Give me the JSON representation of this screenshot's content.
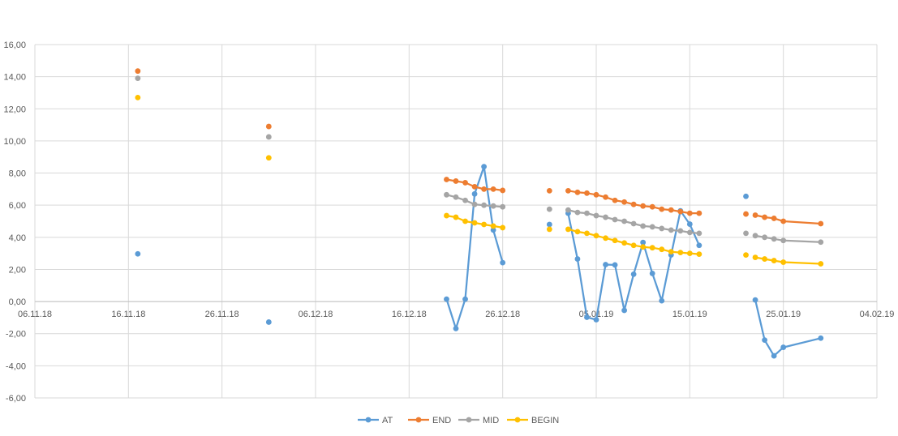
{
  "chart_data": {
    "type": "line",
    "title": "",
    "xlabel": "",
    "ylabel": "",
    "ylim": [
      -6,
      16
    ],
    "xlim": [
      "2018-11-06",
      "2019-02-04"
    ],
    "y_ticks": [
      -6,
      -4,
      -2,
      0,
      2,
      4,
      6,
      8,
      10,
      12,
      14,
      16
    ],
    "y_tick_labels": [
      "-6,00",
      "-4,00",
      "-2,00",
      "0,00",
      "2,00",
      "4,00",
      "6,00",
      "8,00",
      "10,00",
      "12,00",
      "14,00",
      "16,00"
    ],
    "x_ticks": [
      "2018-11-06",
      "2018-11-16",
      "2018-11-26",
      "2018-12-06",
      "2018-12-16",
      "2018-12-26",
      "2019-01-05",
      "2019-01-15",
      "2019-01-25",
      "2019-02-04"
    ],
    "x_tick_labels": [
      "06.11.18",
      "16.11.18",
      "26.11.18",
      "06.12.18",
      "16.12.18",
      "26.12.18",
      "05.01.19",
      "15.01.19",
      "25.01.19",
      "04.02.19"
    ],
    "grid": true,
    "legend_position": "bottom",
    "x": [
      "2018-11-17",
      "2018-12-01",
      "2018-12-20",
      "2018-12-21",
      "2018-12-22",
      "2018-12-23",
      "2018-12-24",
      "2018-12-25",
      "2018-12-26",
      "2018-12-31",
      "2019-01-02",
      "2019-01-03",
      "2019-01-04",
      "2019-01-05",
      "2019-01-06",
      "2019-01-07",
      "2019-01-08",
      "2019-01-09",
      "2019-01-10",
      "2019-01-11",
      "2019-01-12",
      "2019-01-13",
      "2019-01-14",
      "2019-01-15",
      "2019-01-16",
      "2019-01-21",
      "2019-01-22",
      "2019-01-23",
      "2019-01-24",
      "2019-01-25",
      "2019-01-29"
    ],
    "series": [
      {
        "name": "AT",
        "color": "#5B9BD5",
        "values": [
          2.97,
          -1.28,
          0.15,
          -1.68,
          0.15,
          6.7,
          8.4,
          4.45,
          2.42,
          4.8,
          5.5,
          2.65,
          -0.98,
          -1.13,
          2.3,
          2.28,
          -0.55,
          1.7,
          3.68,
          1.75,
          0.05,
          2.9,
          5.65,
          4.82,
          3.5,
          6.55,
          0.1,
          -2.4,
          -3.38,
          -2.85,
          -2.28
        ]
      },
      {
        "name": "END",
        "color": "#ED7D31",
        "values": [
          14.35,
          10.9,
          7.6,
          7.5,
          7.4,
          7.15,
          7.0,
          7.0,
          6.92,
          6.9,
          6.9,
          6.8,
          6.75,
          6.65,
          6.5,
          6.3,
          6.2,
          6.05,
          5.95,
          5.9,
          5.75,
          5.7,
          5.6,
          5.5,
          5.5,
          5.45,
          5.38,
          5.25,
          5.18,
          5.0,
          4.85
        ]
      },
      {
        "name": "MID",
        "color": "#A5A5A5",
        "values": [
          13.9,
          10.25,
          6.65,
          6.5,
          6.3,
          6.05,
          6.0,
          5.95,
          5.9,
          5.75,
          5.7,
          5.55,
          5.5,
          5.35,
          5.25,
          5.1,
          5.0,
          4.85,
          4.7,
          4.65,
          4.55,
          4.45,
          4.4,
          4.3,
          4.25,
          4.25,
          4.1,
          4.0,
          3.9,
          3.8,
          3.7
        ]
      },
      {
        "name": "BEGIN",
        "color": "#FFC000",
        "values": [
          12.7,
          8.95,
          5.35,
          5.25,
          5.0,
          4.9,
          4.8,
          4.7,
          4.6,
          4.5,
          4.5,
          4.35,
          4.25,
          4.1,
          3.95,
          3.8,
          3.65,
          3.5,
          3.4,
          3.35,
          3.25,
          3.1,
          3.05,
          3.0,
          2.95,
          2.9,
          2.75,
          2.65,
          2.55,
          2.45,
          2.35
        ]
      }
    ],
    "continuous_runs": [
      [
        2,
        8
      ],
      [
        10,
        24
      ],
      [
        26,
        30
      ]
    ]
  }
}
